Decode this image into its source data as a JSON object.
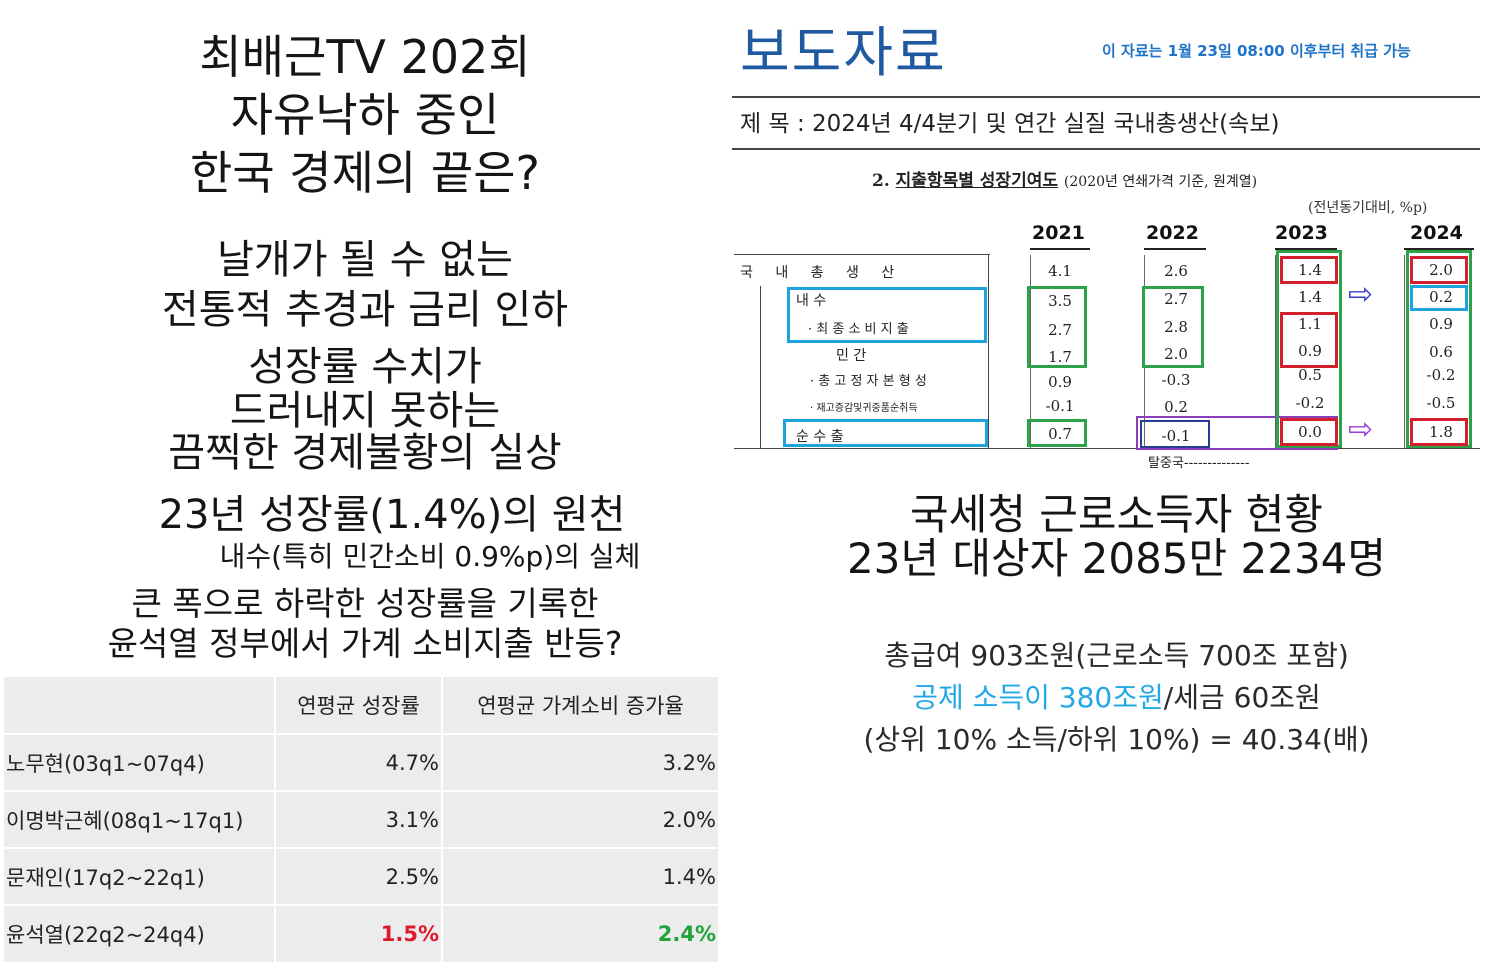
{
  "left": {
    "title_lines": [
      "최배근TV 202회",
      "자유낙하 중인",
      "한국 경제의 끝은?"
    ],
    "sub1_lines": [
      "날개가 될 수 없는",
      "전통적 추경과 금리 인하"
    ],
    "sub2_lines": [
      "성장률 수치가",
      "드러내지 못하는",
      "끔찍한 경제불황의 실상"
    ],
    "sub3_line": "23년 성장률(1.4%)의 원천",
    "sub3_small": "내수(특히 민간소비 0.9%p)의 실체",
    "sub4_lines": [
      "큰 폭으로 하락한 성장률을 기록한",
      "윤석열 정부에서 가계 소비지출 반등?"
    ],
    "table": {
      "headers": [
        "",
        "연평균 성장률",
        "연평균 가계소비 증가율"
      ],
      "rows": [
        {
          "label": "노무현(03q1~07q4)",
          "growth": "4.7%",
          "consumption": "3.2%"
        },
        {
          "label": "이명박근혜(08q1~17q1)",
          "growth": "3.1%",
          "consumption": "2.0%"
        },
        {
          "label": "문재인(17q2~22q1)",
          "growth": "2.5%",
          "consumption": "1.4%"
        },
        {
          "label": "윤석열(22q2~24q4)",
          "growth": "1.5%",
          "consumption": "2.4%"
        }
      ]
    }
  },
  "right": {
    "press_title": "보도자료",
    "embargo": "이 자료는 1월 23일 08:00 이후부터 취급 가능",
    "subject": "제  목 : 2024년 4/4분기 및 연간 실질 국내총생산(속보)",
    "section_num": "2.",
    "section_title": "지출항목별 성장기여도",
    "section_note": "(2020년 연쇄가격 기준, 원계열)",
    "unit": "(전년동기대비, %p)",
    "years": [
      "2021",
      "2022",
      "2023",
      "2024"
    ],
    "rows": [
      {
        "label": "국  내  총  생  산",
        "values": [
          "4.1",
          "2.6",
          "1.4",
          "2.0"
        ]
      },
      {
        "label": "내              수",
        "values": [
          "3.5",
          "2.7",
          "1.4",
          "0.2"
        ]
      },
      {
        "label": "· 최 종 소 비 지 출",
        "values": [
          "2.7",
          "2.8",
          "1.1",
          "0.9"
        ]
      },
      {
        "label": "민              간",
        "values": [
          "1.7",
          "2.0",
          "0.9",
          "0.6"
        ]
      },
      {
        "label": "· 총 고 정 자 본 형 성",
        "values": [
          "0.9",
          "-0.3",
          "0.5",
          "-0.2"
        ]
      },
      {
        "label": "· 재고증감및귀중품순취득",
        "values": [
          "-0.1",
          "0.2",
          "-0.2",
          "-0.5"
        ]
      },
      {
        "label": "순      수      출",
        "values": [
          "0.7",
          "-0.1",
          "0.0",
          "1.8"
        ]
      }
    ],
    "annotation": "탈중국--------------",
    "nts_title_lines": [
      "국세청 근로소득자 현황",
      "23년 대상자 2085만 2234명"
    ],
    "wage_line": "총급여 903조원(근로소득 700조 포함)",
    "deduction_highlight": "공제 소득이 380조원",
    "deduction_rest": "/세금 60조원",
    "ratio_line": "(상위 10% 소득/하위 10%) = 40.34(배)",
    "colors": {
      "green": "#2ca34a",
      "red": "#d3202e",
      "blue": "#1ea4dc",
      "purple": "#8a3fb8"
    }
  }
}
